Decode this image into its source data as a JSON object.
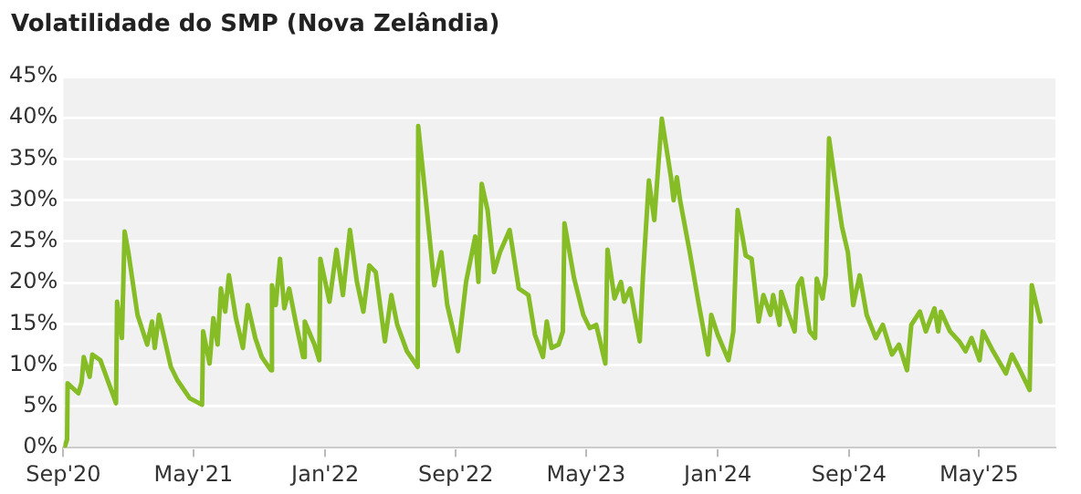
{
  "chart_data": {
    "type": "line",
    "title": "Volatilidade do SMP (Nova Zelândia)",
    "x": [
      "2020-09-03",
      "2020-09-08",
      "2020-09-09",
      "2020-09-29",
      "2020-10-05",
      "2020-10-09",
      "2020-10-20",
      "2020-10-25",
      "2020-11-09",
      "2020-12-08",
      "2020-12-10",
      "2020-12-19",
      "2020-12-24",
      "2020-12-31",
      "2021-01-17",
      "2021-02-04",
      "2021-02-13",
      "2021-02-18",
      "2021-02-26",
      "2021-03-20",
      "2021-04-01",
      "2021-04-24",
      "2021-05-17",
      "2021-05-19",
      "2021-05-31",
      "2021-06-07",
      "2021-06-15",
      "2021-06-21",
      "2021-06-29",
      "2021-07-06",
      "2021-07-19",
      "2021-08-01",
      "2021-08-10",
      "2021-08-24",
      "2021-09-05",
      "2021-09-22",
      "2021-09-24",
      "2021-10-01",
      "2021-10-09",
      "2021-10-17",
      "2021-10-26",
      "2021-11-07",
      "2021-11-21",
      "2021-11-24",
      "2021-12-12",
      "2021-12-21",
      "2021-12-23",
      "2022-01-09",
      "2022-01-22",
      "2022-02-03",
      "2022-02-16",
      "2022-03-01",
      "2022-03-13",
      "2022-03-24",
      "2022-04-05",
      "2022-04-22",
      "2022-05-04",
      "2022-05-15",
      "2022-06-02",
      "2022-06-22",
      "2022-06-23",
      "2022-07-06",
      "2022-07-23",
      "2022-08-05",
      "2022-08-16",
      "2022-09-05",
      "2022-09-20",
      "2022-10-07",
      "2022-10-13",
      "2022-10-19",
      "2022-10-30",
      "2022-11-11",
      "2022-11-22",
      "2022-12-10",
      "2022-12-27",
      "2023-01-14",
      "2023-01-26",
      "2023-02-10",
      "2023-02-17",
      "2023-02-26",
      "2023-03-11",
      "2023-03-19",
      "2023-03-22",
      "2023-04-09",
      "2023-04-26",
      "2023-05-08",
      "2023-05-20",
      "2023-06-06",
      "2023-06-10",
      "2023-06-23",
      "2023-07-05",
      "2023-07-11",
      "2023-07-22",
      "2023-08-09",
      "2023-08-15",
      "2023-08-26",
      "2023-09-05",
      "2023-09-19",
      "2023-10-06",
      "2023-10-11",
      "2023-10-17",
      "2023-10-23",
      "2023-11-10",
      "2023-11-27",
      "2023-12-14",
      "2023-12-20",
      "2024-01-01",
      "2024-01-21",
      "2024-01-30",
      "2024-02-07",
      "2024-02-16",
      "2024-02-22",
      "2024-03-04",
      "2024-03-17",
      "2024-03-26",
      "2024-04-08",
      "2024-04-13",
      "2024-04-25",
      "2024-04-28",
      "2024-05-12",
      "2024-05-23",
      "2024-05-29",
      "2024-06-05",
      "2024-06-20",
      "2024-06-30",
      "2024-07-03",
      "2024-07-14",
      "2024-07-20",
      "2024-07-26",
      "2024-08-05",
      "2024-08-19",
      "2024-08-30",
      "2024-09-09",
      "2024-09-21",
      "2024-10-04",
      "2024-10-21",
      "2024-11-03",
      "2024-11-20",
      "2024-12-03",
      "2024-12-18",
      "2024-12-26",
      "2025-01-11",
      "2025-01-22",
      "2025-02-07",
      "2025-02-14",
      "2025-02-19",
      "2025-03-08",
      "2025-03-25",
      "2025-04-06",
      "2025-04-17",
      "2025-05-02",
      "2025-05-08",
      "2025-05-27",
      "2025-06-20",
      "2025-07-01",
      "2025-07-13",
      "2025-08-03",
      "2025-08-07",
      "2025-08-23"
    ],
    "series": [
      {
        "color": "#86bc25",
        "values": [
          0,
          1.0,
          7.8,
          6.6,
          7.9,
          11.0,
          8.6,
          11.3,
          10.6,
          5.4,
          17.7,
          13.3,
          26.2,
          23.7,
          16.1,
          12.5,
          15.3,
          12.1,
          16.1,
          9.8,
          8.2,
          6.0,
          5.2,
          14.1,
          10.2,
          15.7,
          12.5,
          19.3,
          16.5,
          20.9,
          15.7,
          12.1,
          17.3,
          13.3,
          11.0,
          9.4,
          19.7,
          17.3,
          22.9,
          16.9,
          19.3,
          15.3,
          11.0,
          15.3,
          12.5,
          10.6,
          22.9,
          17.7,
          24.0,
          18.5,
          26.4,
          20.1,
          16.5,
          22.1,
          21.3,
          12.9,
          18.5,
          14.9,
          11.7,
          9.8,
          39.0,
          30.8,
          19.7,
          23.7,
          17.3,
          11.7,
          20.1,
          25.6,
          20.1,
          32.0,
          28.8,
          21.3,
          23.7,
          26.4,
          19.3,
          18.5,
          13.7,
          11.0,
          15.3,
          12.1,
          12.5,
          14.1,
          27.2,
          20.5,
          16.1,
          14.5,
          14.9,
          10.2,
          24.0,
          18.1,
          20.1,
          17.7,
          19.3,
          12.9,
          20.9,
          32.4,
          27.6,
          39.9,
          32.8,
          30.0,
          32.8,
          30.0,
          23.7,
          17.3,
          11.3,
          16.1,
          13.7,
          10.6,
          14.1,
          28.8,
          25.6,
          23.3,
          22.9,
          15.3,
          18.5,
          16.1,
          18.5,
          14.9,
          18.9,
          16.1,
          14.1,
          19.7,
          20.5,
          14.1,
          13.3,
          20.5,
          18.1,
          20.9,
          37.5,
          32.8,
          26.8,
          23.7,
          17.3,
          20.9,
          16.1,
          13.3,
          14.9,
          11.3,
          12.5,
          9.4,
          14.9,
          16.5,
          14.1,
          16.9,
          14.1,
          16.5,
          14.1,
          12.9,
          11.7,
          13.3,
          10.6,
          14.1,
          11.7,
          9.0,
          11.3,
          9.8,
          7.0,
          19.7,
          15.3
        ]
      }
    ],
    "xlim": [
      "2020-09-01",
      "2025-09-20"
    ],
    "xticks": [
      {
        "value": "2020-09",
        "label": "Sep'20"
      },
      {
        "value": "2021-05",
        "label": "May'21"
      },
      {
        "value": "2022-01",
        "label": "Jan'22"
      },
      {
        "value": "2022-09",
        "label": "Sep'22"
      },
      {
        "value": "2023-05",
        "label": "May'23"
      },
      {
        "value": "2024-01",
        "label": "Jan'24"
      },
      {
        "value": "2024-09",
        "label": "Sep'24"
      },
      {
        "value": "2025-05",
        "label": "May'25"
      }
    ],
    "ylim": [
      0,
      45
    ],
    "yticks": [
      {
        "value": 0,
        "label": "0%"
      },
      {
        "value": 5,
        "label": "5%"
      },
      {
        "value": 10,
        "label": "10%"
      },
      {
        "value": 15,
        "label": "15%"
      },
      {
        "value": 20,
        "label": "20%"
      },
      {
        "value": 25,
        "label": "25%"
      },
      {
        "value": 30,
        "label": "30%"
      },
      {
        "value": 35,
        "label": "35%"
      },
      {
        "value": 40,
        "label": "40%"
      },
      {
        "value": 45,
        "label": "45%"
      }
    ],
    "grid": "y",
    "marker": "none",
    "line_style": "solid",
    "legend": false
  }
}
